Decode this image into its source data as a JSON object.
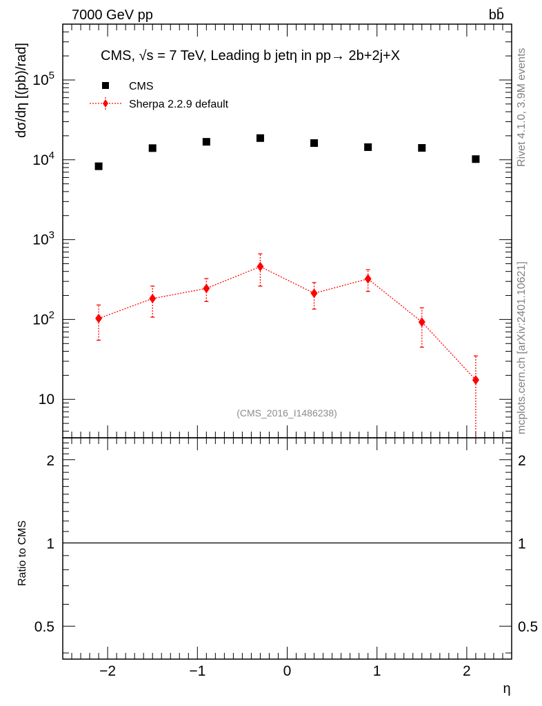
{
  "header": {
    "left": "7000 GeV pp",
    "right": "bb̄"
  },
  "side_labels": {
    "rivet": "Rivet 4.1.0,  3.9M events",
    "mcplots": "mcplots.cern.ch [arXiv:2401.10621]"
  },
  "colors": {
    "cms": "#000000",
    "sherpa": "#ff0000",
    "reference_text": "#8c8c8c",
    "side_text": "#808080"
  },
  "chart_data": [
    {
      "panel": "main",
      "type": "scatter",
      "title": "CMS, √s = 7 TeV, Leading b jetη in pp→  2b+2j+X",
      "ylabel": "dσ/dη [(pb)/rad]",
      "reference": "(CMS_2016_I1486238)",
      "yscale": "log",
      "xlim": [
        -2.5,
        2.5
      ],
      "ylim": [
        3.3,
        500000
      ],
      "legend_placement": "top-left",
      "x_ticks": [
        -2,
        -1,
        0,
        1,
        2
      ],
      "y_tick_labels": [
        {
          "value": 10,
          "text": "10"
        },
        {
          "value": 100,
          "base": "10",
          "exp": "2"
        },
        {
          "value": 1000,
          "base": "10",
          "exp": "3"
        },
        {
          "value": 10000,
          "base": "10",
          "exp": "4"
        },
        {
          "value": 100000,
          "base": "10",
          "exp": "5"
        }
      ],
      "x": [
        -2.1,
        -1.5,
        -0.9,
        -0.3,
        0.3,
        0.9,
        1.5,
        2.1
      ],
      "series": [
        {
          "name": "CMS",
          "marker": "square",
          "color": "#000000",
          "values": [
            8300,
            14000,
            16800,
            18700,
            16200,
            14400,
            14100,
            10200
          ]
        },
        {
          "name": "Sherpa 2.2.9 default",
          "marker": "diamond",
          "color": "#ff0000",
          "line": "dotted",
          "values": [
            103,
            183,
            245,
            460,
            213,
            323,
            93,
            17.5
          ],
          "err_low": [
            55,
            107,
            168,
            262,
            135,
            225,
            45,
            3.3
          ],
          "err_high": [
            152,
            262,
            325,
            665,
            290,
            420,
            140,
            35
          ]
        }
      ]
    },
    {
      "panel": "ratio",
      "type": "line",
      "ylabel": "Ratio to CMS",
      "xlabel": "η",
      "xlim": [
        -2.5,
        2.5
      ],
      "ylim": [
        0.38,
        2.4
      ],
      "y_ticks": [
        0.5,
        1,
        2
      ],
      "x_ticks": [
        -2,
        -1,
        0,
        1,
        2
      ],
      "x_tick_labels": [
        "−2",
        "−1",
        "0",
        "1",
        "2"
      ],
      "reference_line": 1
    }
  ]
}
